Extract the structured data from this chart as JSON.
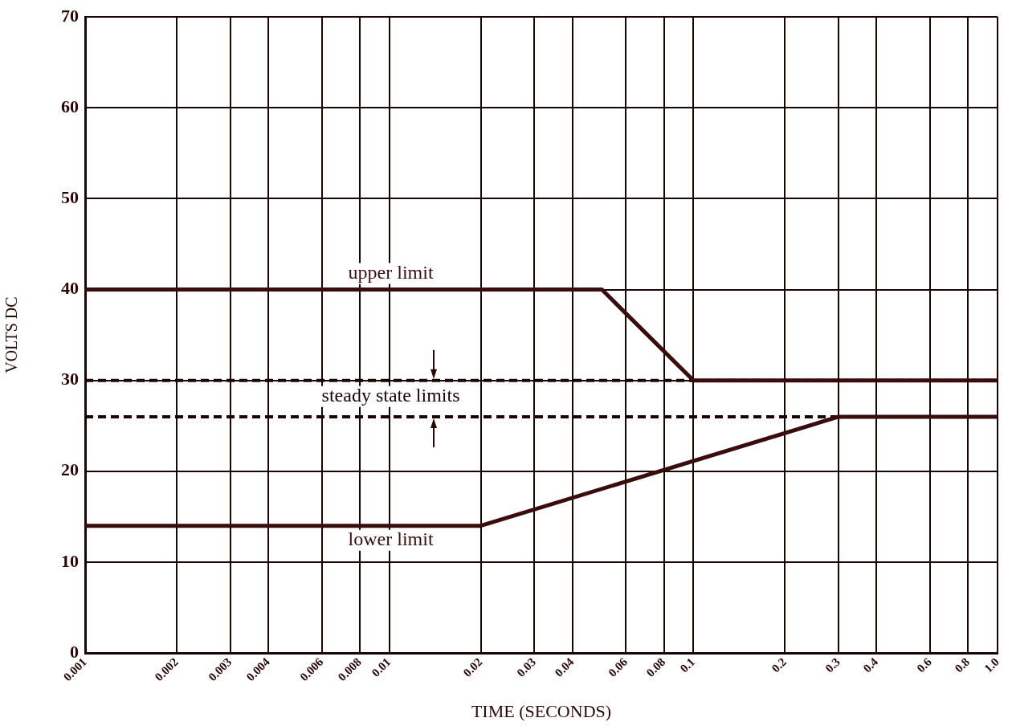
{
  "chart_data": {
    "type": "line",
    "xlabel": "TIME (SECONDS)",
    "ylabel": "VOLTS DC",
    "log": "x",
    "xlim": [
      0.001,
      1
    ],
    "xticks": [
      0.001,
      0.002,
      0.003,
      0.004,
      0.006,
      0.008,
      0.01,
      0.02,
      0.03,
      0.04,
      0.06,
      0.08,
      0.1,
      0.2,
      0.3,
      0.4,
      0.6,
      0.8,
      {
        "value": 1,
        "label": "1.0"
      }
    ],
    "ylim": [
      0,
      70
    ],
    "yticks": [
      0,
      10,
      20,
      30,
      40,
      50,
      60,
      70
    ],
    "grid": true,
    "legend": false,
    "marker": "none",
    "line_style": "solid",
    "series": [
      {
        "name": "upper limit",
        "color": "#3a0c0c",
        "x": [
          0.001,
          0.05,
          0.1,
          1
        ],
        "values": [
          40,
          40,
          30,
          30
        ]
      },
      {
        "name": "lower limit",
        "color": "#3a0c0c",
        "x": [
          0.001,
          0.02,
          0.3,
          1
        ],
        "values": [
          14,
          14,
          26,
          26
        ]
      }
    ],
    "ref_lines": [
      {
        "axis": "y",
        "value": 30,
        "color": "#1a0505",
        "line_style": "dashed",
        "label": "steady state limits"
      },
      {
        "axis": "y",
        "value": 26,
        "color": "#1a0505",
        "line_style": "dashed"
      }
    ]
  }
}
